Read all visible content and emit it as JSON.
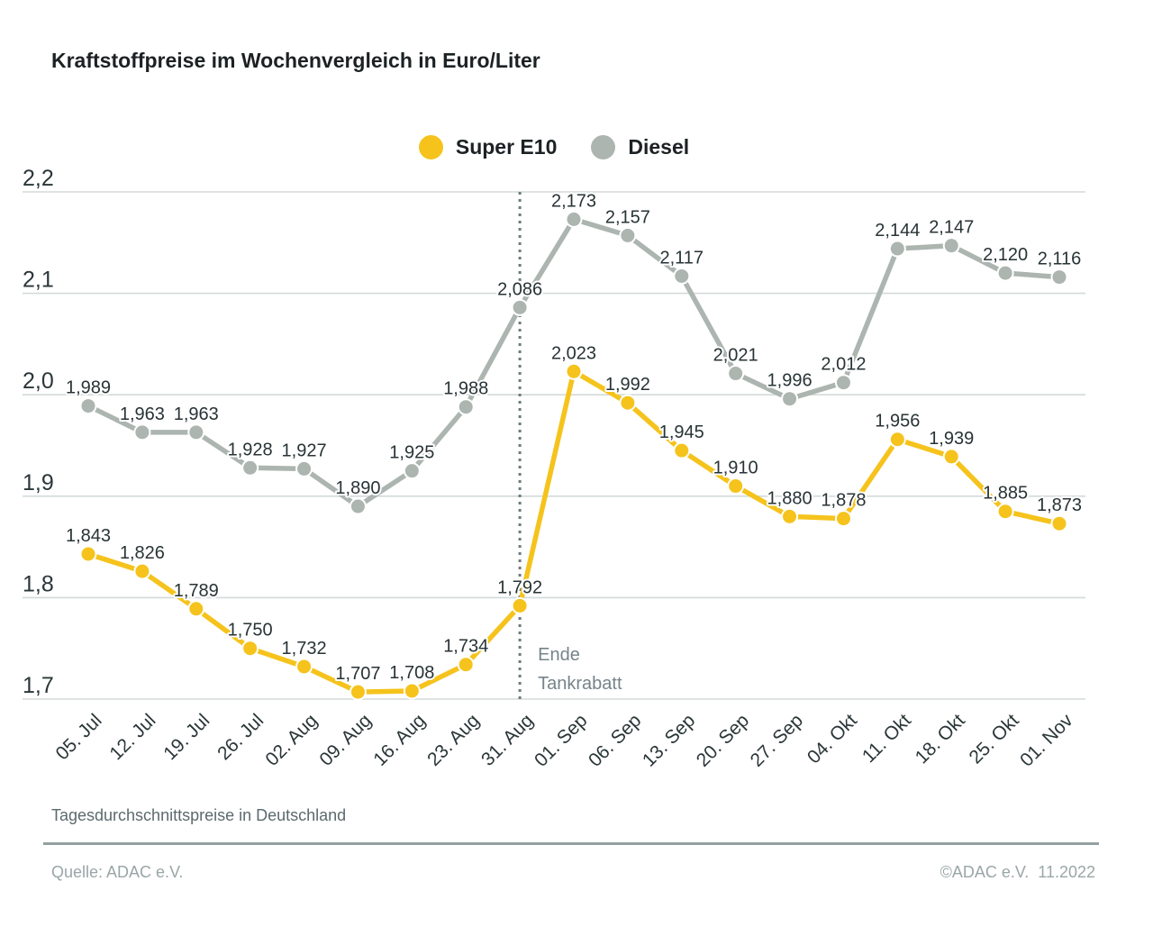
{
  "title": "Kraftstoffpreise im Wochenvergleich in Euro/Liter",
  "legend": {
    "super_e10": {
      "label": "Super E10",
      "color": "#F5C31C"
    },
    "diesel": {
      "label": "Diesel",
      "color": "#ACB5B0"
    }
  },
  "annotation": {
    "lines": [
      "Ende",
      "Tankrabatt"
    ],
    "x_index": 8,
    "color": "#76848a"
  },
  "footer": {
    "subtitle": "Tagesdurchschnittspreise in Deutschland",
    "source": "Quelle: ADAC e.V.",
    "copyright": "©ADAC e.V.  11.2022"
  },
  "chart_data": {
    "type": "line",
    "title": "Kraftstoffpreise im Wochenvergleich in Euro/Liter",
    "categories": [
      "05. Jul",
      "12. Jul",
      "19. Jul",
      "26. Jul",
      "02. Aug",
      "09. Aug",
      "16. Aug",
      "23. Aug",
      "31. Aug",
      "01. Sep",
      "06. Sep",
      "13. Sep",
      "20. Sep",
      "27. Sep",
      "04. Okt",
      "11. Okt",
      "18. Okt",
      "25. Okt",
      "01. Nov"
    ],
    "series": [
      {
        "name": "Diesel",
        "color": "#ACB5B0",
        "values": [
          1.989,
          1.963,
          1.963,
          1.928,
          1.927,
          1.89,
          1.925,
          1.988,
          2.086,
          2.173,
          2.157,
          2.117,
          2.021,
          1.996,
          2.012,
          2.144,
          2.147,
          2.12,
          2.116
        ]
      },
      {
        "name": "Super E10",
        "color": "#F5C31C",
        "values": [
          1.843,
          1.826,
          1.789,
          1.75,
          1.732,
          1.707,
          1.708,
          1.734,
          1.792,
          2.023,
          1.992,
          1.945,
          1.91,
          1.88,
          1.878,
          1.956,
          1.939,
          1.885,
          1.873
        ]
      }
    ],
    "yticks": [
      2.2,
      2.1,
      2.0,
      1.9,
      1.8,
      1.7
    ],
    "ylim": [
      1.7,
      2.2
    ],
    "unit": "Euro/Liter",
    "decimal_separator": ",",
    "grid": true,
    "legend_position": "top-center",
    "colors": {
      "gridline": "#d3dad9",
      "tick_text": "#2b3638",
      "value_text": "#283335",
      "dotted_line": "#6e7a7d"
    }
  }
}
